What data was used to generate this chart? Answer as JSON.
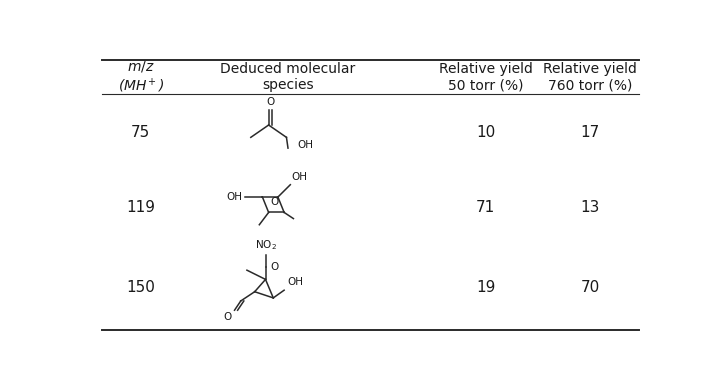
{
  "col_headers": [
    "m/z\n(MH⁺)",
    "Deduced molecular\nspecies",
    "Relative yield\n50 torr (%)",
    "Relative yield\n760 torr (%)"
  ],
  "rows": [
    {
      "mz": "75",
      "yield50": "10",
      "yield760": "17"
    },
    {
      "mz": "119",
      "yield50": "71",
      "yield760": "13"
    },
    {
      "mz": "150",
      "yield50": "19",
      "yield760": "70"
    }
  ],
  "bg_color": "#ffffff",
  "text_color": "#1a1a1a",
  "line_color": "#2a2a2a",
  "header_fontsize": 10,
  "data_fontsize": 11
}
